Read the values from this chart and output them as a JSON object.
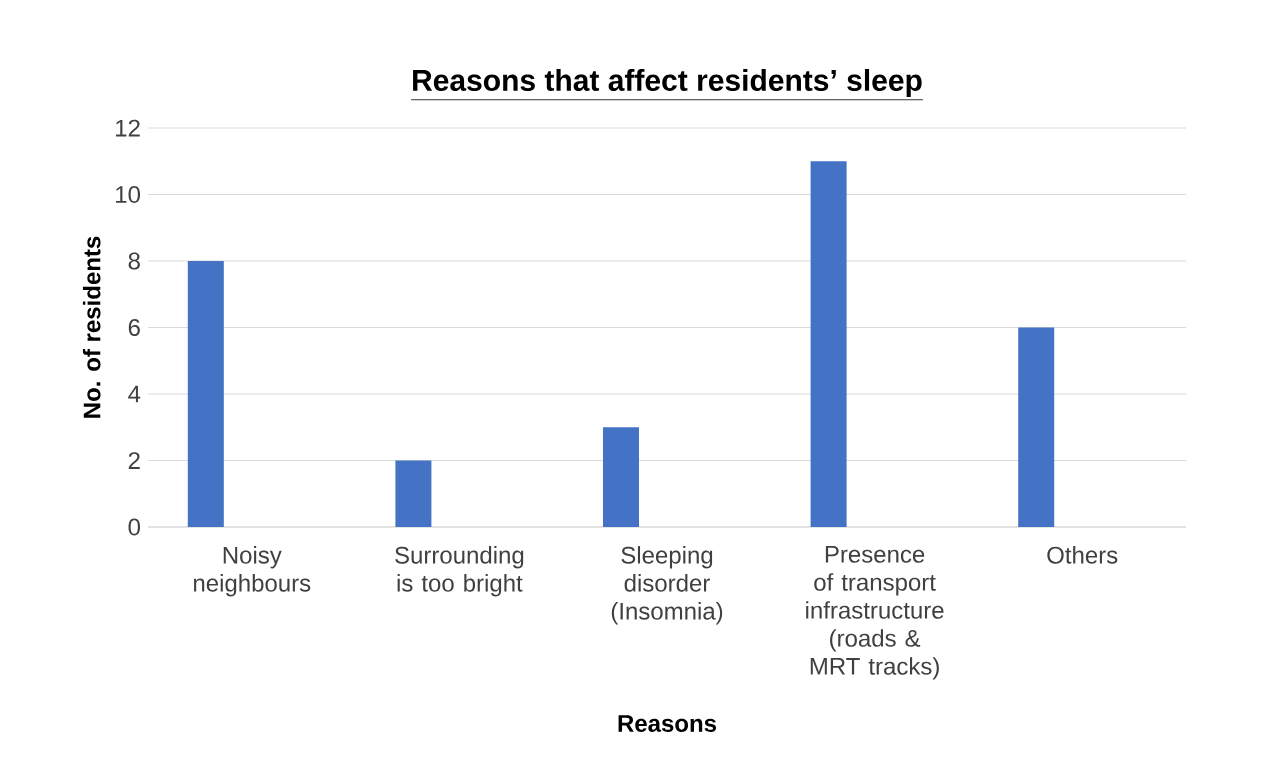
{
  "chart_data": {
    "type": "bar",
    "title": "Reasons that affect residents’ sleep",
    "xlabel": "Reasons",
    "ylabel": "No. of residents",
    "categories": [
      "Noisy neighbours",
      "Surrounding is too bright",
      "Sleeping disorder (Insomnia)",
      "Presence of transport infrastructure (roads & MRT tracks)",
      "Others"
    ],
    "values": [
      8,
      2,
      3,
      11,
      6
    ],
    "color": "#4472c4",
    "ylim": [
      0,
      12
    ],
    "yticks": [
      0,
      2,
      4,
      6,
      8,
      10,
      12
    ],
    "grid": "y"
  }
}
